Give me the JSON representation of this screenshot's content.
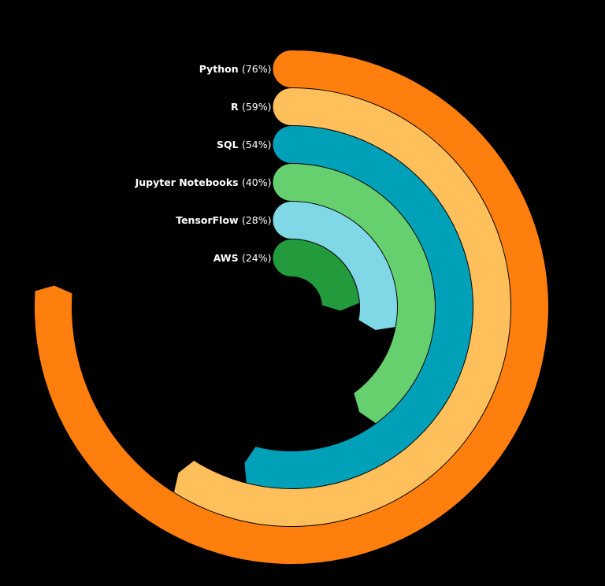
{
  "chart_data": {
    "type": "radial-bar",
    "title": "",
    "series": [
      {
        "name": "Python",
        "value": 76,
        "pct_label": "(76%)",
        "color": "#FF7F0E"
      },
      {
        "name": "R",
        "value": 59,
        "pct_label": "(59%)",
        "color": "#FFBF5A"
      },
      {
        "name": "SQL",
        "value": 54,
        "pct_label": "(54%)",
        "color": "#00A0B8"
      },
      {
        "name": "Jupyter Notebooks",
        "value": 40,
        "pct_label": "(40%)",
        "color": "#66D06F"
      },
      {
        "name": "TensorFlow",
        "value": 28,
        "pct_label": "(28%)",
        "color": "#80D8E6"
      },
      {
        "name": "AWS",
        "value": 24,
        "pct_label": "(24%)",
        "color": "#239A3B"
      }
    ],
    "max_value": 100,
    "background": "#000000"
  }
}
